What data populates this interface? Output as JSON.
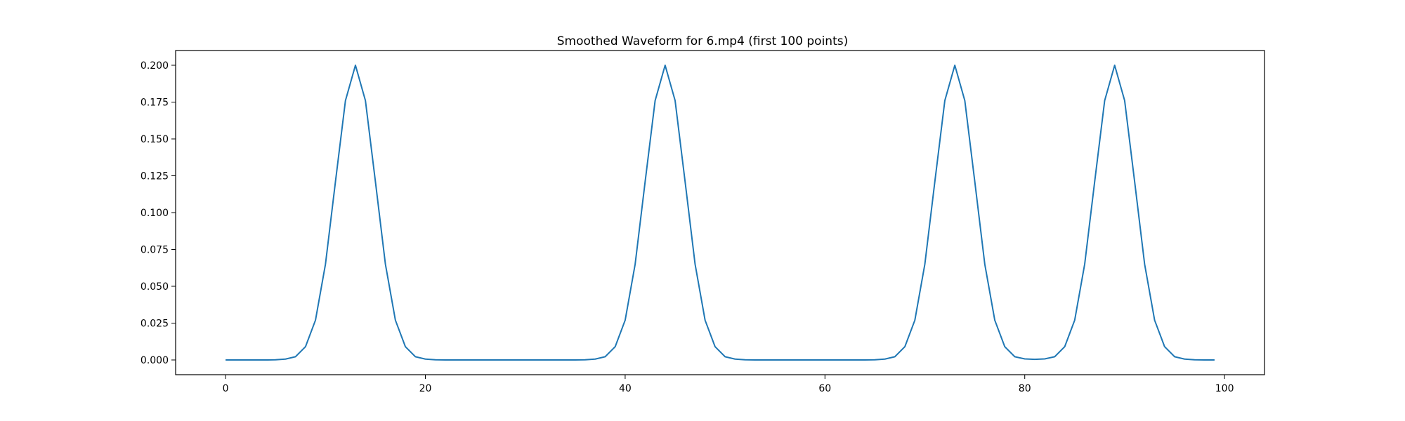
{
  "chart_data": {
    "type": "line",
    "title": "Smoothed Waveform for 6.mp4 (first 100 points)",
    "xlabel": "",
    "ylabel": "",
    "xlim": [
      -5,
      104
    ],
    "ylim": [
      -0.01,
      0.21
    ],
    "grid": false,
    "x_ticks": [
      0,
      20,
      40,
      60,
      80,
      100
    ],
    "y_ticks": [
      0.0,
      0.025,
      0.05,
      0.075,
      0.1,
      0.125,
      0.15,
      0.175,
      0.2
    ],
    "x_tick_labels": [
      "0",
      "20",
      "40",
      "60",
      "80",
      "100"
    ],
    "y_tick_labels": [
      "0.000",
      "0.025",
      "0.050",
      "0.075",
      "0.100",
      "0.125",
      "0.150",
      "0.175",
      "0.200"
    ],
    "series": [
      {
        "color": "#1f77b4",
        "x": [
          0,
          1,
          2,
          3,
          4,
          5,
          6,
          7,
          8,
          9,
          10,
          11,
          12,
          13,
          14,
          15,
          16,
          17,
          18,
          19,
          20,
          21,
          22,
          23,
          24,
          25,
          26,
          27,
          28,
          29,
          30,
          31,
          32,
          33,
          34,
          35,
          36,
          37,
          38,
          39,
          40,
          41,
          42,
          43,
          44,
          45,
          46,
          47,
          48,
          49,
          50,
          51,
          52,
          53,
          54,
          55,
          56,
          57,
          58,
          59,
          60,
          61,
          62,
          63,
          64,
          65,
          66,
          67,
          68,
          69,
          70,
          71,
          72,
          73,
          74,
          75,
          76,
          77,
          78,
          79,
          80,
          81,
          82,
          83,
          84,
          85,
          86,
          87,
          88,
          89,
          90,
          91,
          92,
          93,
          94,
          95,
          96,
          97,
          98,
          99
        ],
        "y": [
          0,
          0,
          0,
          0,
          0,
          0.0001,
          0.0006,
          0.0022,
          0.009,
          0.027,
          0.065,
          0.121,
          0.176,
          0.2,
          0.176,
          0.121,
          0.065,
          0.027,
          0.009,
          0.0022,
          0.0006,
          0.0001,
          0,
          0,
          0,
          0,
          0,
          0,
          0,
          0,
          0,
          0,
          0,
          0,
          0,
          0,
          0.0001,
          0.0006,
          0.0022,
          0.009,
          0.027,
          0.065,
          0.121,
          0.176,
          0.2,
          0.176,
          0.121,
          0.065,
          0.027,
          0.009,
          0.0022,
          0.0006,
          0.0001,
          0,
          0,
          0,
          0,
          0,
          0,
          0,
          0,
          0,
          0,
          0,
          0,
          0.0001,
          0.0006,
          0.0022,
          0.009,
          0.027,
          0.065,
          0.121,
          0.176,
          0.2,
          0.176,
          0.121,
          0.065,
          0.027,
          0.009,
          0.0022,
          0.0007,
          0.0004,
          0.0007,
          0.0022,
          0.009,
          0.027,
          0.065,
          0.121,
          0.176,
          0.2,
          0.176,
          0.121,
          0.065,
          0.027,
          0.009,
          0.0022,
          0.0006,
          0.0001,
          0,
          0
        ]
      }
    ]
  }
}
